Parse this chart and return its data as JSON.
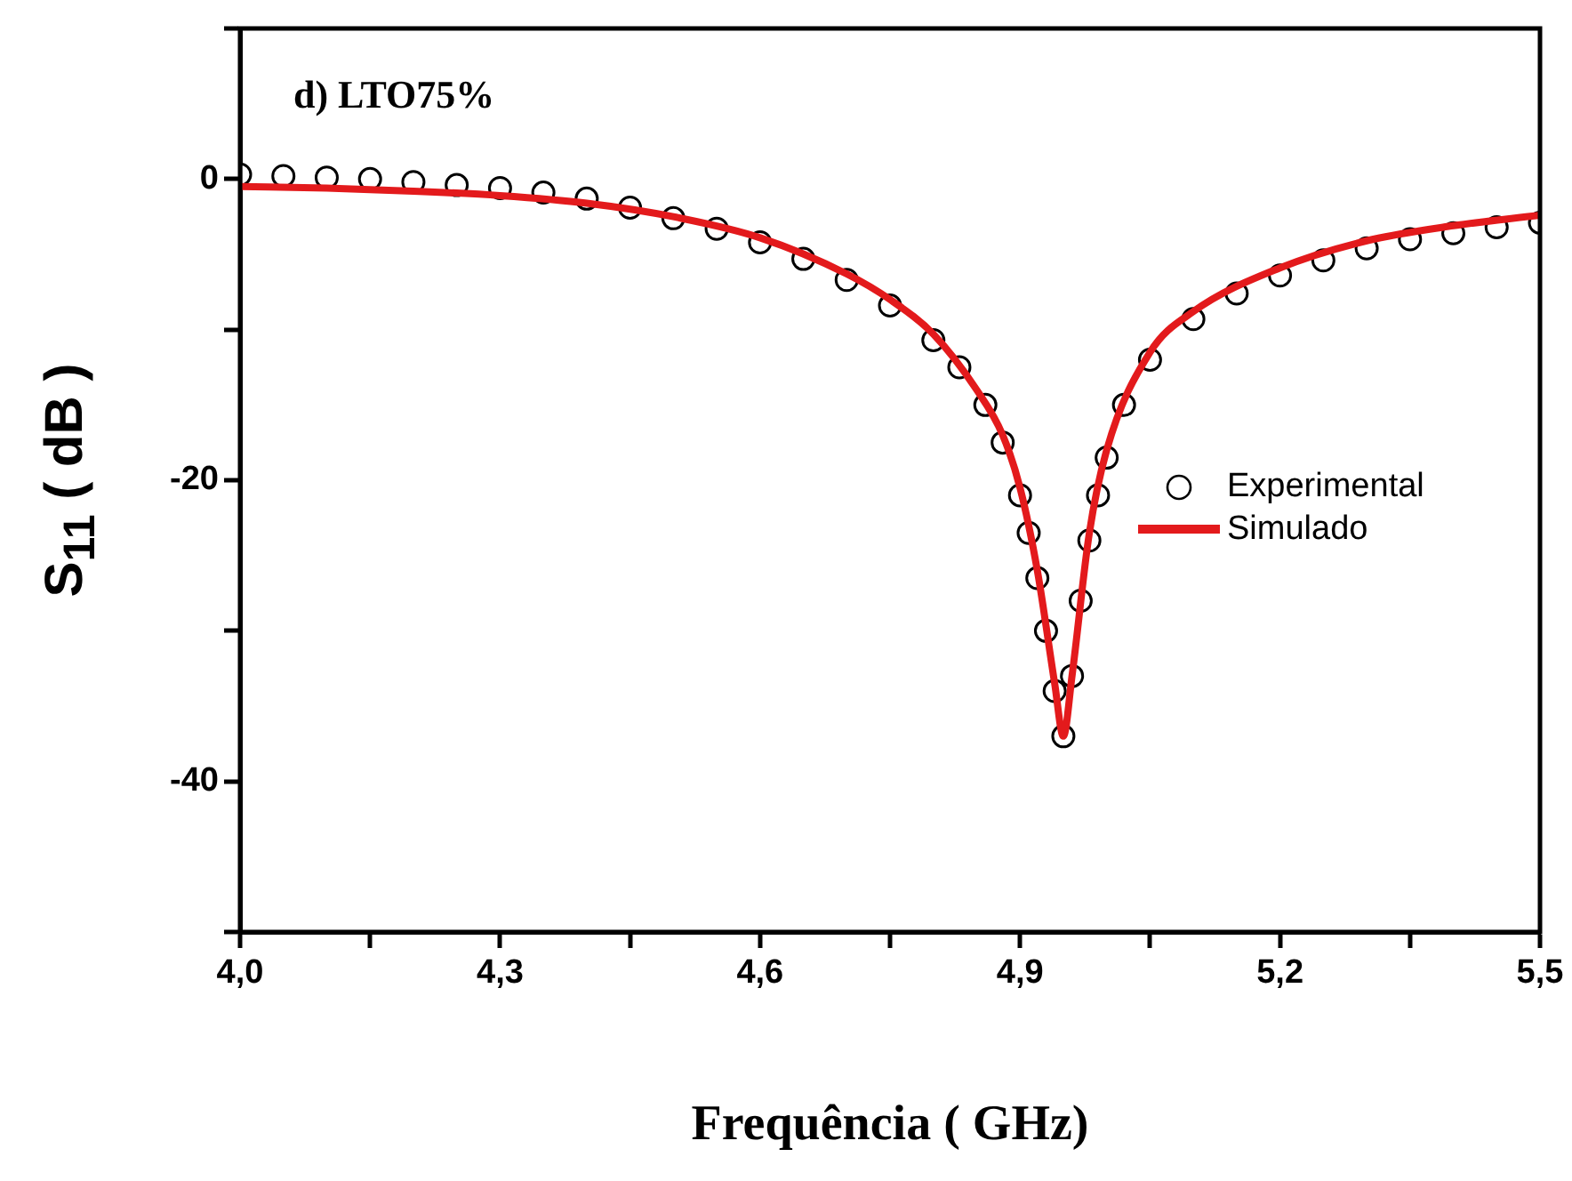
{
  "chart_data": {
    "type": "scatter",
    "xlabel": "Frequência ( GHz)",
    "ylabel": "S$_{11}$ ( dB )",
    "annotations": [
      "d) LTO75%"
    ],
    "xlim": [
      4.0,
      5.5
    ],
    "ylim": [
      -50,
      10
    ],
    "xticks": [
      {
        "value": 4.0,
        "label": "4,0"
      },
      {
        "value": 4.15,
        "label": null
      },
      {
        "value": 4.3,
        "label": "4,3"
      },
      {
        "value": 4.45,
        "label": null
      },
      {
        "value": 4.6,
        "label": "4,6"
      },
      {
        "value": 4.75,
        "label": null
      },
      {
        "value": 4.9,
        "label": "4,9"
      },
      {
        "value": 5.05,
        "label": null
      },
      {
        "value": 5.2,
        "label": "5,2"
      },
      {
        "value": 5.35,
        "label": null
      },
      {
        "value": 5.5,
        "label": "5,5"
      }
    ],
    "yticks": [
      {
        "value": -50,
        "label": null
      },
      -40,
      {
        "value": -30,
        "label": null
      },
      -20,
      {
        "value": -10,
        "label": null
      },
      0,
      {
        "value": 10,
        "label": null
      }
    ],
    "grid": false,
    "legend": "right",
    "series": [
      {
        "name": "Experimental",
        "marker": "circle",
        "color": "#000000",
        "x": [
          4.0,
          4.05,
          4.1,
          4.15,
          4.2,
          4.25,
          4.3,
          4.35,
          4.4,
          4.45,
          4.5,
          4.55,
          4.6,
          4.65,
          4.7,
          4.75,
          4.8,
          4.83,
          4.86,
          4.88,
          4.9,
          4.91,
          4.92,
          4.93,
          4.94,
          4.95,
          4.96,
          4.97,
          4.98,
          4.99,
          5.0,
          5.02,
          5.05,
          5.1,
          5.15,
          5.2,
          5.25,
          5.3,
          5.35,
          5.4,
          5.45,
          5.5
        ],
        "values": [
          0.3,
          0.2,
          0.1,
          0,
          -0.2,
          -0.4,
          -0.6,
          -0.9,
          -1.3,
          -1.9,
          -2.6,
          -3.3,
          -4.2,
          -5.3,
          -6.7,
          -8.4,
          -10.7,
          -12.5,
          -15,
          -17.5,
          -21,
          -23.5,
          -26.5,
          -30,
          -34,
          -37,
          -33,
          -28,
          -24,
          -21,
          -18.5,
          -15,
          -12,
          -9.3,
          -7.6,
          -6.4,
          -5.4,
          -4.6,
          -4.0,
          -3.6,
          -3.2,
          -2.9
        ]
      },
      {
        "name": "Simulado",
        "type": "line",
        "marker": "none",
        "line_style": "solid",
        "color": "#e31a1c",
        "x": [
          4.0,
          4.1,
          4.2,
          4.3,
          4.4,
          4.5,
          4.6,
          4.7,
          4.75,
          4.8,
          4.85,
          4.88,
          4.9,
          4.92,
          4.94,
          4.95,
          4.96,
          4.98,
          5.0,
          5.05,
          5.1,
          5.2,
          5.3,
          5.4,
          5.5
        ],
        "values": [
          -0.5,
          -0.6,
          -0.8,
          -1.1,
          -1.6,
          -2.5,
          -3.9,
          -6.3,
          -8.0,
          -10.3,
          -14,
          -17,
          -20.5,
          -26,
          -33.5,
          -37,
          -33,
          -23.5,
          -18,
          -11.5,
          -8.8,
          -5.9,
          -4.1,
          -3.1,
          -2.4
        ]
      }
    ]
  }
}
